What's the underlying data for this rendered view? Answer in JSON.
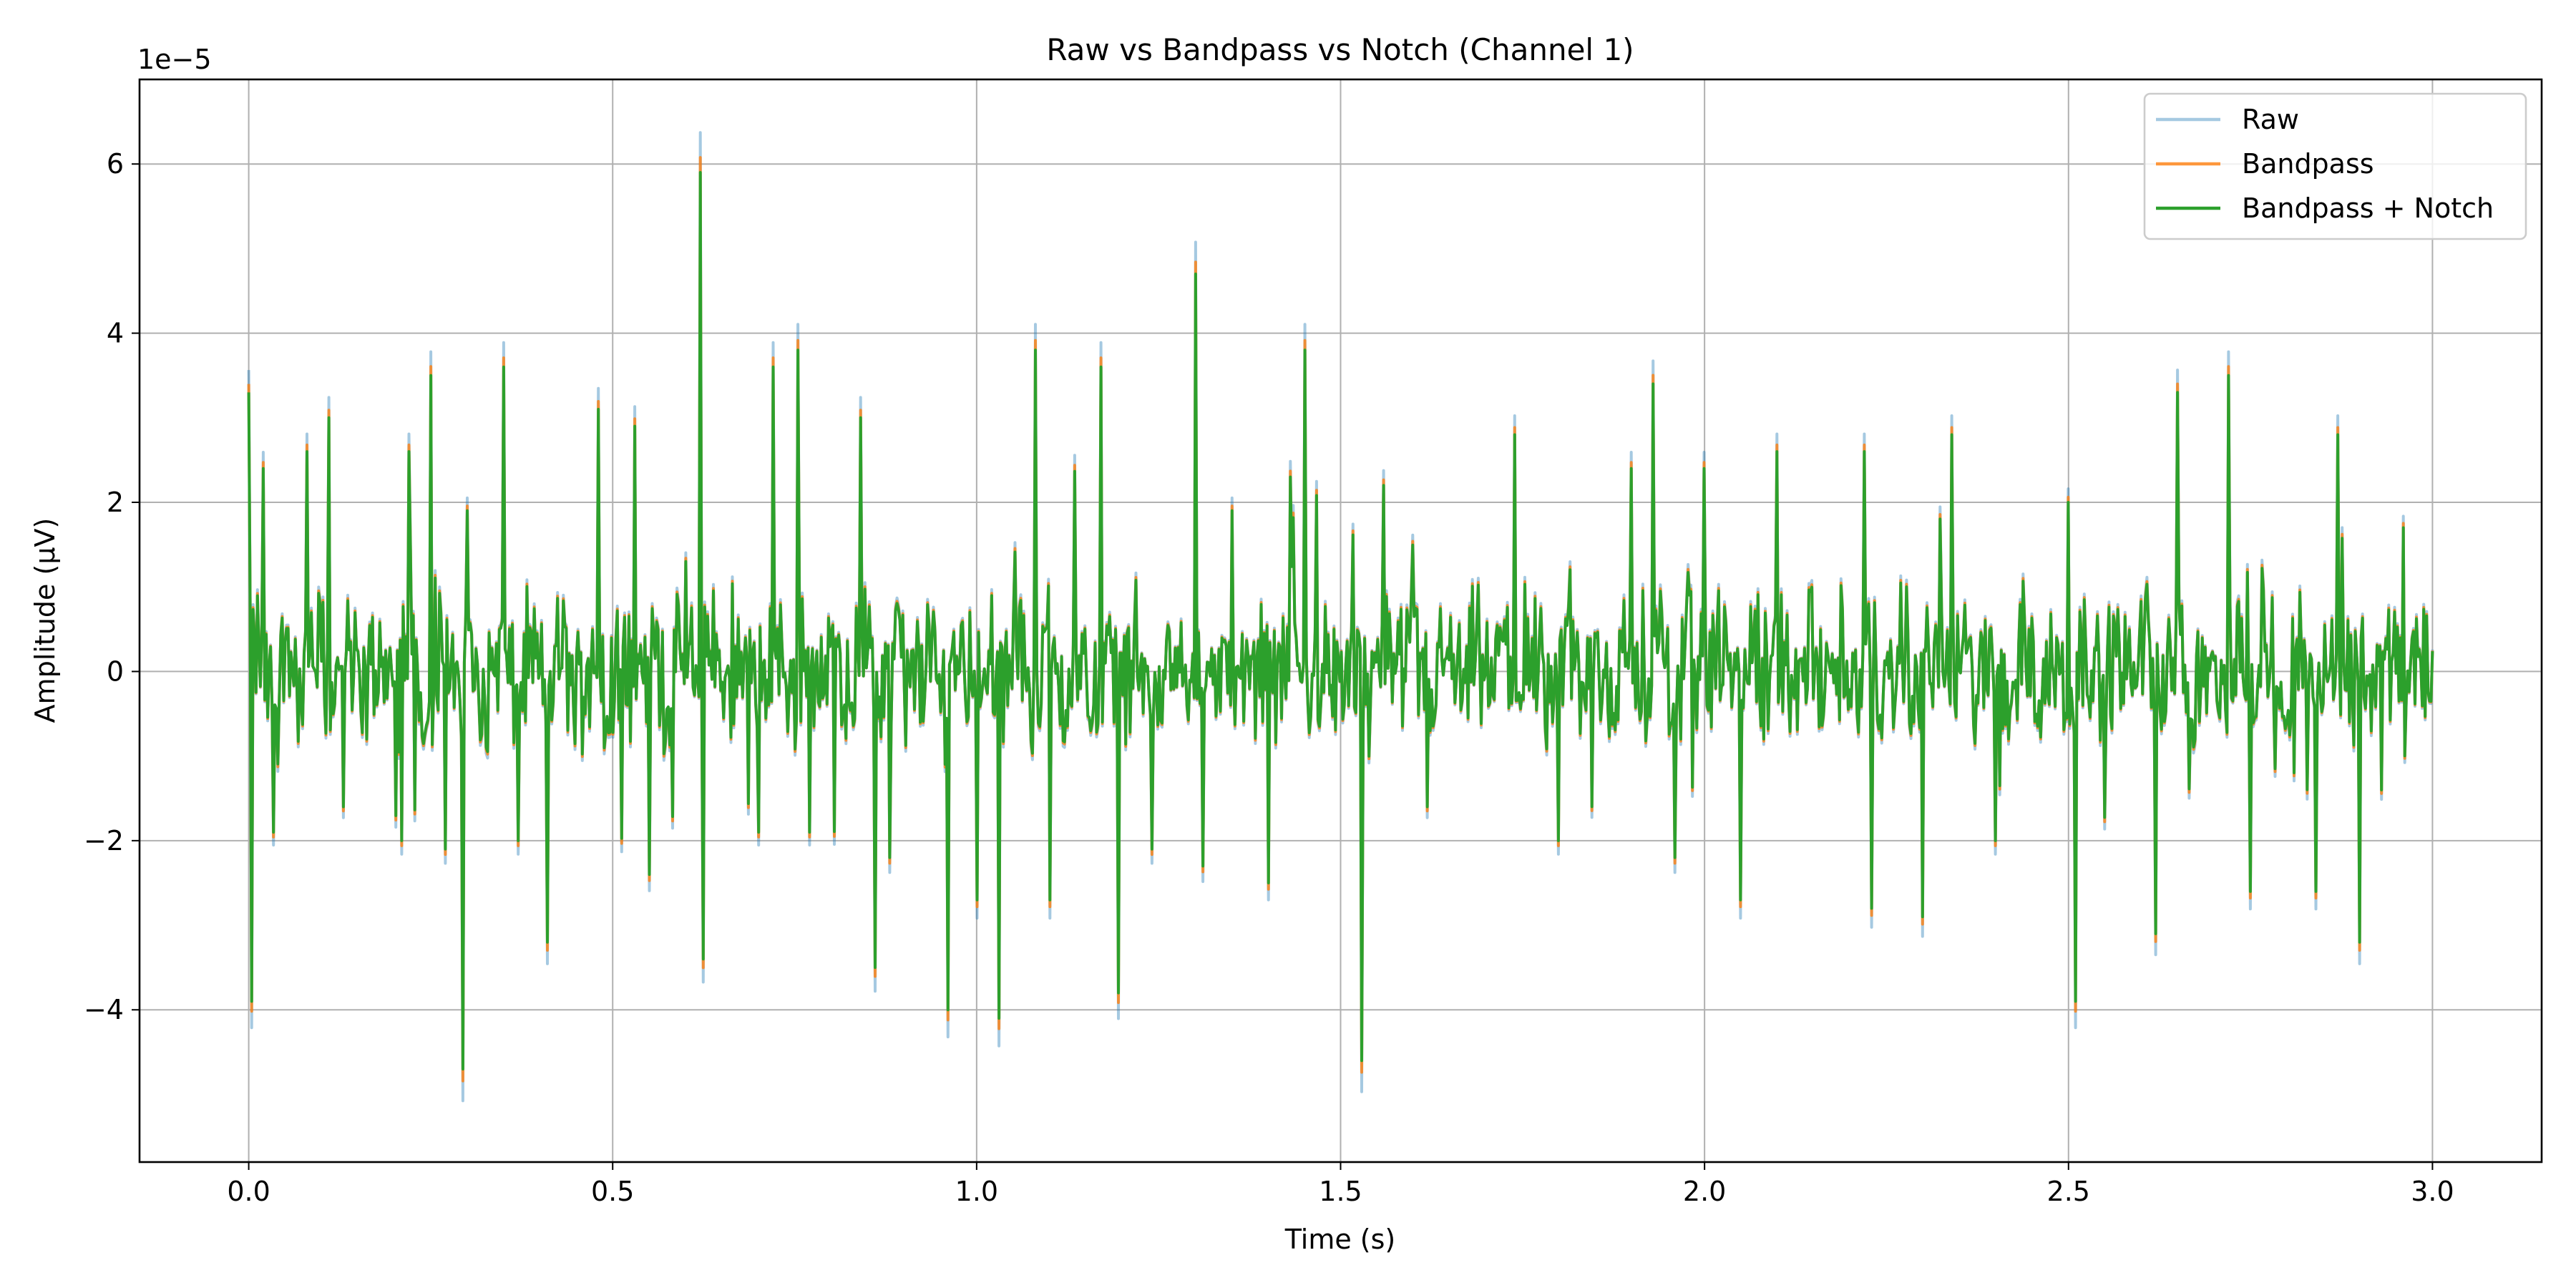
{
  "chart_data": {
    "type": "line",
    "title": "Raw vs Bandpass vs Notch (Channel 1)",
    "xlabel": "Time (s)",
    "ylabel": "Amplitude (µV)",
    "y_offset_label": "1e−5",
    "xlim": [
      -0.15,
      3.15
    ],
    "ylim": [
      -5.8e-05,
      7e-05
    ],
    "x_ticks": [
      0.0,
      0.5,
      1.0,
      1.5,
      2.0,
      2.5,
      3.0
    ],
    "x_tick_labels": [
      "0.0",
      "0.5",
      "1.0",
      "1.5",
      "2.0",
      "2.5",
      "3.0"
    ],
    "y_ticks": [
      -4e-05,
      -2e-05,
      0,
      2e-05,
      4e-05,
      6e-05
    ],
    "y_tick_labels": [
      "−4",
      "−2",
      "0",
      "2",
      "4",
      "6"
    ],
    "grid": true,
    "legend_position": "top-right",
    "series": [
      {
        "name": "Raw",
        "color": "#1f77b4",
        "opacity": 0.4,
        "scale": 1.08
      },
      {
        "name": "Bandpass",
        "color": "#ff7f0e",
        "opacity": 0.8,
        "scale": 1.03
      },
      {
        "name": "Bandpass + Notch",
        "color": "#2ca02c",
        "opacity": 1.0,
        "scale": 1.0
      }
    ],
    "signal": {
      "sample_count": 1500,
      "peaks": [
        [
          0.0,
          3.3e-05
        ],
        [
          0.005,
          -3.9e-05
        ],
        [
          0.02,
          2.4e-05
        ],
        [
          0.035,
          -1.9e-05
        ],
        [
          0.08,
          2.6e-05
        ],
        [
          0.11,
          3e-05
        ],
        [
          0.13,
          -1.6e-05
        ],
        [
          0.21,
          -2e-05
        ],
        [
          0.22,
          2.6e-05
        ],
        [
          0.25,
          3.5e-05
        ],
        [
          0.27,
          -2.1e-05
        ],
        [
          0.295,
          -4.7e-05
        ],
        [
          0.3,
          1.9e-05
        ],
        [
          0.35,
          3.6e-05
        ],
        [
          0.37,
          -2e-05
        ],
        [
          0.41,
          -3.2e-05
        ],
        [
          0.48,
          3.1e-05
        ],
        [
          0.53,
          2.9e-05
        ],
        [
          0.55,
          -2.4e-05
        ],
        [
          0.6,
          1.3e-05
        ],
        [
          0.62,
          5.9e-05
        ],
        [
          0.625,
          -3.4e-05
        ],
        [
          0.7,
          -1.9e-05
        ],
        [
          0.72,
          3.6e-05
        ],
        [
          0.755,
          3.8e-05
        ],
        [
          0.77,
          -1.9e-05
        ],
        [
          0.84,
          3e-05
        ],
        [
          0.86,
          -3.5e-05
        ],
        [
          0.88,
          -2.2e-05
        ],
        [
          0.96,
          -4e-05
        ],
        [
          1.0,
          -2.7e-05
        ],
        [
          1.03,
          -4.1e-05
        ],
        [
          1.08,
          3.8e-05
        ],
        [
          1.1,
          -2.7e-05
        ],
        [
          1.17,
          3.6e-05
        ],
        [
          1.195,
          -3.8e-05
        ],
        [
          1.24,
          -2.1e-05
        ],
        [
          1.3,
          4.7e-05
        ],
        [
          1.31,
          -2.3e-05
        ],
        [
          1.35,
          1.9e-05
        ],
        [
          1.4,
          -2.5e-05
        ],
        [
          1.43,
          2.3e-05
        ],
        [
          1.45,
          3.8e-05
        ],
        [
          1.53,
          -4.6e-05
        ],
        [
          1.56,
          2.2e-05
        ],
        [
          1.62,
          -1.6e-05
        ],
        [
          1.74,
          2.8e-05
        ],
        [
          1.8,
          -2e-05
        ],
        [
          1.9,
          2.4e-05
        ],
        [
          1.93,
          3.4e-05
        ],
        [
          1.96,
          -2.2e-05
        ],
        [
          2.0,
          2.4e-05
        ],
        [
          2.05,
          -2.7e-05
        ],
        [
          2.1,
          2.6e-05
        ],
        [
          2.22,
          2.6e-05
        ],
        [
          2.23,
          -2.8e-05
        ],
        [
          2.3,
          -2.9e-05
        ],
        [
          2.34,
          2.8e-05
        ],
        [
          2.4,
          -2e-05
        ],
        [
          2.5,
          2e-05
        ],
        [
          2.51,
          -3.9e-05
        ],
        [
          2.62,
          -3.1e-05
        ],
        [
          2.65,
          3.3e-05
        ],
        [
          2.72,
          3.5e-05
        ],
        [
          2.75,
          -2.6e-05
        ],
        [
          2.84,
          -2.6e-05
        ],
        [
          2.87,
          2.8e-05
        ],
        [
          2.9,
          -3.2e-05
        ],
        [
          2.93,
          -1.4e-05
        ],
        [
          2.96,
          1.7e-05
        ]
      ]
    }
  }
}
